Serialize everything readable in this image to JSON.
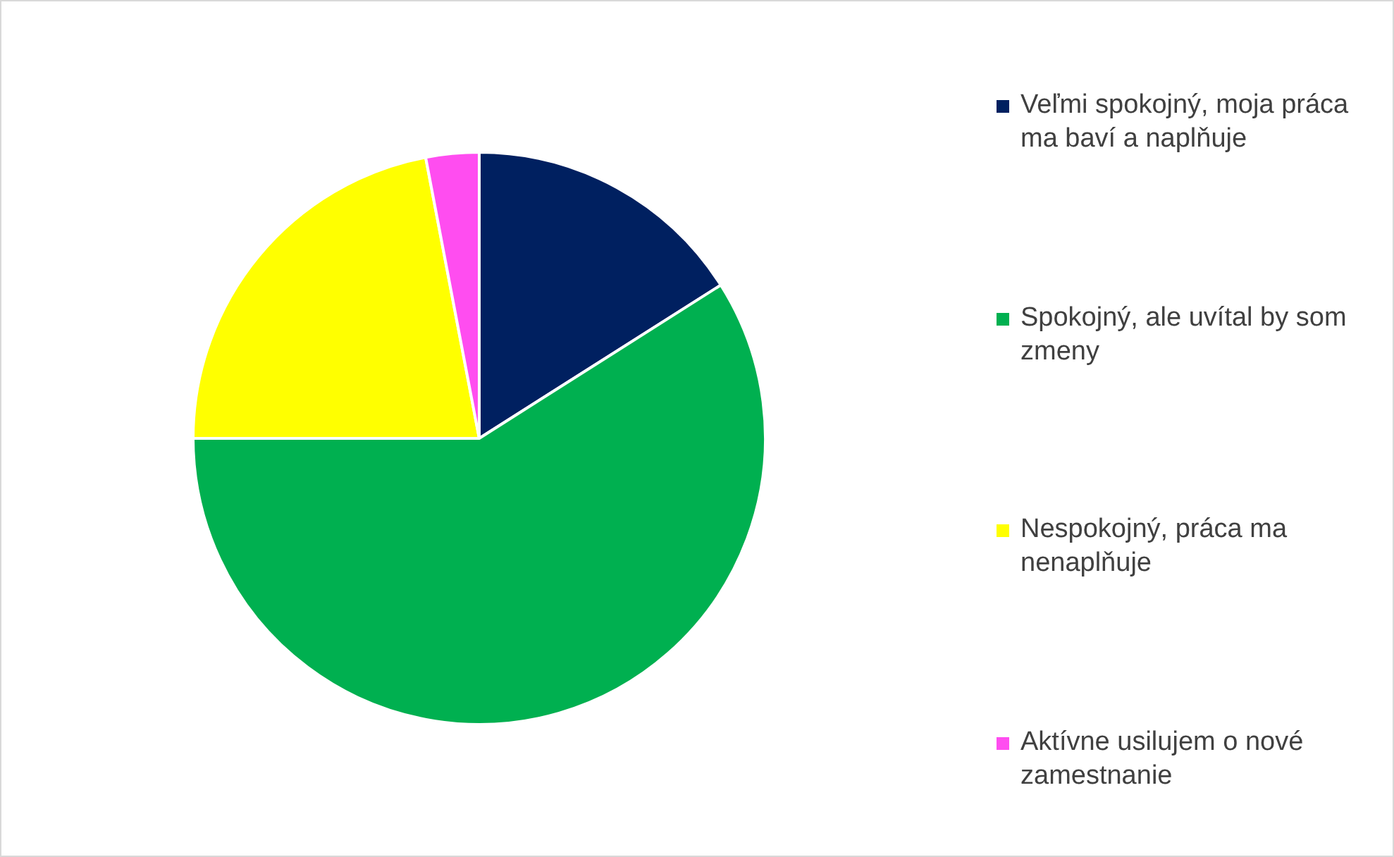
{
  "chart_data": {
    "type": "pie",
    "categories": [
      "Veľmi spokojný, moja práca ma baví a naplňuje",
      "Spokojný, ale uvítal by som zmeny",
      "Nespokojný, práca ma nenaplňuje",
      "Aktívne usilujem o nové zamestnanie"
    ],
    "values": [
      16,
      59,
      22,
      3
    ],
    "colors": [
      "#002060",
      "#00b050",
      "#ffff00",
      "#ff4df0"
    ],
    "legend": "right"
  }
}
